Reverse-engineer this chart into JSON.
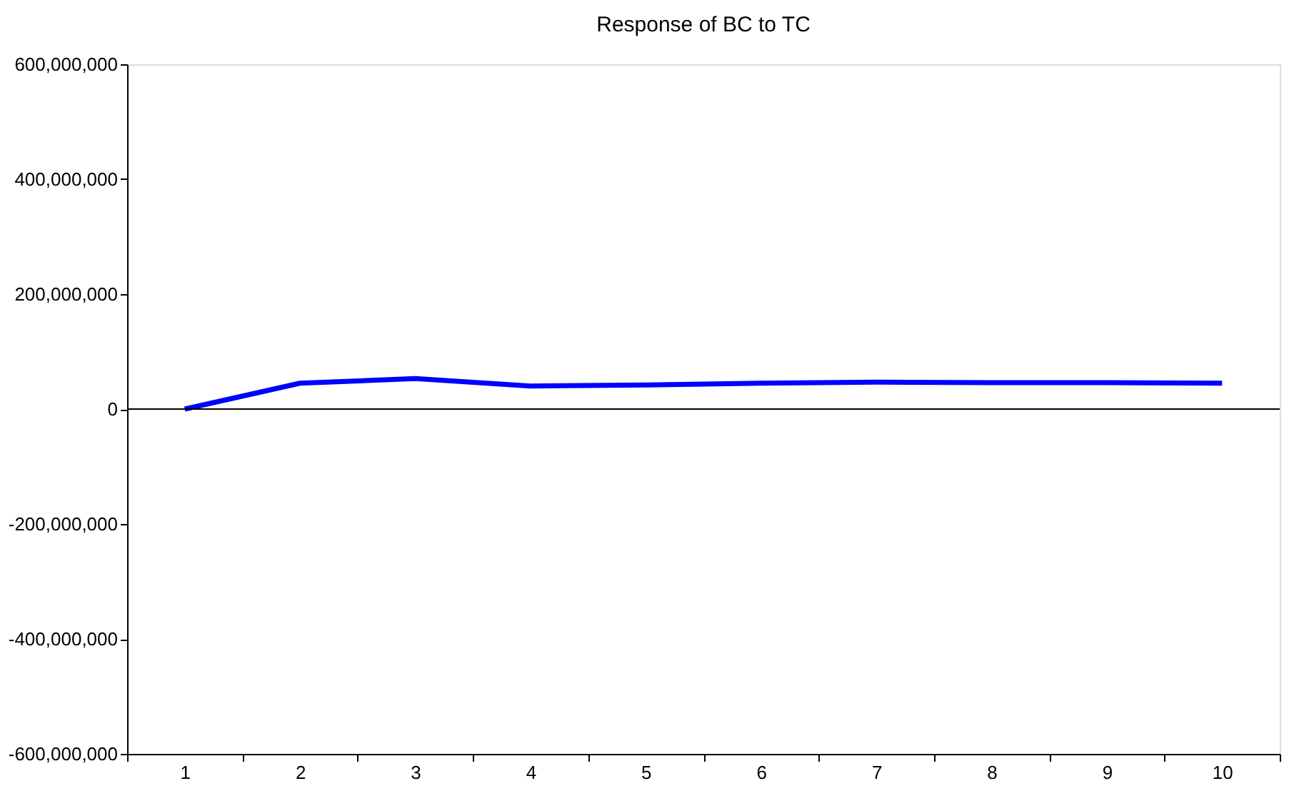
{
  "chart_data": {
    "type": "line",
    "title": "Response of BC to TC",
    "categories": [
      "1",
      "2",
      "3",
      "4",
      "5",
      "6",
      "7",
      "8",
      "9",
      "10"
    ],
    "series": [
      {
        "color": "#0000ff",
        "values": [
          0,
          45000000,
          53000000,
          40000000,
          42000000,
          45000000,
          47000000,
          46000000,
          46000000,
          45000000
        ]
      }
    ],
    "ylim": [
      -600000000,
      600000000
    ],
    "yticks": [
      {
        "value": -600000000,
        "label": "-600,000,000"
      },
      {
        "value": -400000000,
        "label": "-400,000,000"
      },
      {
        "value": -200000000,
        "label": "-200,000,000"
      },
      {
        "value": 0,
        "label": "0"
      },
      {
        "value": 200000000,
        "label": "200,000,000"
      },
      {
        "value": 400000000,
        "label": "400,000,000"
      },
      {
        "value": 600000000,
        "label": "600,000,000"
      }
    ],
    "ref_lines": [
      {
        "axis": "y",
        "value": 0,
        "color": "#000000"
      }
    ],
    "grid": false,
    "line_style": "solid",
    "marker": "none"
  }
}
